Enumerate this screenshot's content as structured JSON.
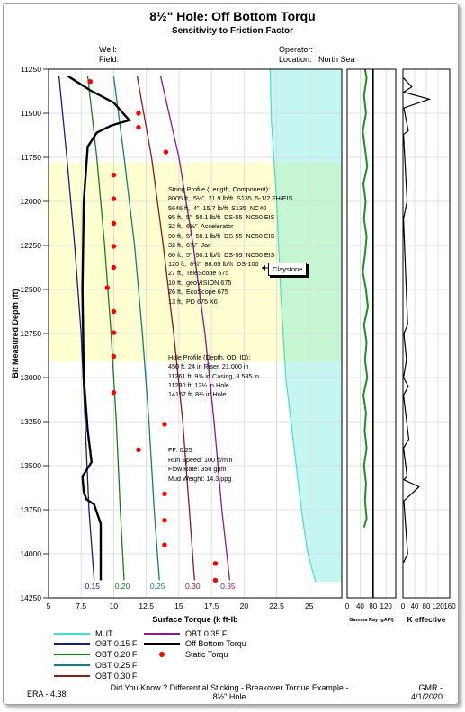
{
  "title": "8½\" Hole: Off Bottom Torqu",
  "subtitle": "Sensitivity to Friction Factor",
  "header": {
    "well_label": "Well:",
    "field_label": "Field:",
    "operator_label": "Operator:",
    "location_label": "Location:",
    "location_value": "North Sea"
  },
  "info_box": {
    "string_profile": [
      "String Profile (Length, Component):",
      "8005 ft,  5½\"  21.9 lb/ft  S135  5-1/2 FH/EIS",
      "5646 ft,  4\"  15.7 lb/ft  S135  NC40",
      "95 ft,  5\"  50.1 lb/ft  DS-55  NC50 EIS",
      "32 ft,  6½\"  Accelerator",
      "90 ft,  5\"  50.1 lb/ft  DS-55  NC50 EIS",
      "32 ft,  6½\"  Jar",
      "60 ft,  5\"  50.1 lb/ft  DS-55  NC50 EIS",
      "120 ft,  6¾\"  88.65 lb/ft  DS-100",
      "27 ft,  TeleScope 675",
      "10 ft,  geoVISION 675",
      "26 ft,  EcoScope 675",
      "13 ft,  PD 675 X6"
    ],
    "hole_profile": [
      "Hole Profile (Depth, OD, ID):",
      "450 ft, 24 in Riser, 21.000 in",
      "11261 ft, 9⅝ in Casing, 8.535 in",
      "11280 ft, 12¼ in Hole",
      "14157 ft, 8½ in Hole"
    ],
    "params": [
      "FF: 0.25",
      "Run Speed: 100 ft/min",
      "Flow Rate: 350 gpm",
      "Mud Weight: 14.3 ppg"
    ]
  },
  "claystone_label": "Claystone",
  "legend": {
    "items": [
      {
        "label": "MUT",
        "color": "#40e0d0",
        "kind": "line"
      },
      {
        "label": "OBT 0.15 F",
        "color": "#1a1a8c",
        "kind": "line"
      },
      {
        "label": "OBT 0.20 F",
        "color": "#1f7a1f",
        "kind": "line"
      },
      {
        "label": "OBT 0.25 F",
        "color": "#0f7f7f",
        "kind": "line"
      },
      {
        "label": "OBT 0.30 F",
        "color": "#8b1a1a",
        "kind": "line"
      },
      {
        "label": "OBT 0.35 F",
        "color": "#8b1a8b",
        "kind": "line"
      },
      {
        "label": "Off Bottom Torqu",
        "color": "#000000",
        "kind": "line"
      },
      {
        "label": "Static Torqu",
        "color": "#ff0000",
        "kind": "dot"
      }
    ]
  },
  "footer": {
    "left": "ERA - 4.38.",
    "center_line1": "Did You Know ? Differential Sticking - Breakover Torque Example -",
    "center_line2": "8½\" Hole",
    "right_line1": "GMR -",
    "right_line2": "4/1/2020"
  },
  "chart_data": [
    {
      "type": "line",
      "title": "8½\" Hole: Off Bottom Torqu",
      "xlabel": "Surface Torque (k ft-lb",
      "ylabel": "Bit Measured Depth (ft)",
      "xlim": [
        5,
        27.5
      ],
      "ylim": [
        14250,
        11250
      ],
      "y_inverted": true,
      "xticks": [
        "5",
        "7.5",
        "10",
        "12.5",
        "15",
        "17.5",
        "20",
        "22.5",
        "25"
      ],
      "yticks": [
        "11250",
        "11500",
        "11750",
        "12000",
        "12250",
        "12500",
        "12750",
        "13000",
        "13250",
        "13500",
        "13750",
        "14000",
        "14250"
      ],
      "grid": true,
      "shaded_band": {
        "depth_from": 11780,
        "depth_to": 12910,
        "color": "#ffffcc"
      },
      "series": [
        {
          "name": "MUT",
          "color": "#40e0d0",
          "x": [
            22,
            22.1,
            22.5,
            22.8,
            23.2,
            23.6,
            24.0,
            24.4,
            24.9,
            25.5
          ],
          "y": [
            11250,
            11550,
            12000,
            12500,
            13000,
            13250,
            13500,
            13750,
            14000,
            14160
          ]
        },
        {
          "name": "OBT 0.15 F",
          "color": "#1a1a8c",
          "series_label": "0.15",
          "x": [
            5.8,
            6.4,
            7.0,
            7.5,
            7.8,
            8.1,
            8.5
          ],
          "y": [
            11290,
            11750,
            12250,
            12750,
            13250,
            13750,
            14150
          ]
        },
        {
          "name": "OBT 0.20 F",
          "color": "#1f7a1f",
          "series_label": "0.20",
          "x": [
            8.0,
            8.7,
            9.3,
            9.8,
            10.2,
            10.5,
            10.8
          ],
          "y": [
            11290,
            11750,
            12250,
            12750,
            13250,
            13750,
            14150
          ]
        },
        {
          "name": "OBT 0.25 F",
          "color": "#0f7f7f",
          "series_label": "0.25",
          "x": [
            10.0,
            10.8,
            11.6,
            12.2,
            12.7,
            13.1,
            13.5
          ],
          "y": [
            11290,
            11750,
            12250,
            12750,
            13250,
            13750,
            14150
          ]
        },
        {
          "name": "OBT 0.30 F",
          "color": "#8b1a1a",
          "series_label": "0.30",
          "x": [
            11.8,
            12.9,
            13.8,
            14.6,
            15.3,
            15.8,
            16.2
          ],
          "y": [
            11290,
            11750,
            12250,
            12750,
            13250,
            13750,
            14150
          ]
        },
        {
          "name": "OBT 0.35 F",
          "color": "#8b1a8b",
          "series_label": "0.35",
          "x": [
            13.6,
            15.0,
            16.1,
            17.0,
            17.7,
            18.3,
            18.9
          ],
          "y": [
            11290,
            11750,
            12250,
            12750,
            13250,
            13750,
            14150
          ]
        },
        {
          "name": "Off Bottom Torqu",
          "color": "#000000",
          "x": [
            6.5,
            8.2,
            10.0,
            11.2,
            9.8,
            8.7,
            8.0,
            7.7,
            7.6,
            7.7,
            8.0,
            8.3,
            7.6,
            7.7,
            7.9,
            8.5,
            9.0,
            9.0
          ],
          "y": [
            11290,
            11370,
            11440,
            11540,
            11570,
            11610,
            11690,
            12000,
            12500,
            13000,
            13300,
            13480,
            13560,
            13650,
            13690,
            13720,
            13830,
            14150
          ]
        },
        {
          "name": "Static Torqu",
          "color": "#ff0000",
          "type": "scatter",
          "x": [
            8.2,
            11.9,
            11.9,
            14.0,
            10.0,
            10.0,
            10.0,
            10.0,
            10.0,
            9.5,
            10.0,
            10.0,
            10.0,
            10.0,
            13.9,
            11.9,
            13.9,
            13.9,
            13.9,
            17.8,
            17.8
          ],
          "y": [
            11320,
            11500,
            11580,
            11720,
            11850,
            11985,
            12125,
            12255,
            12375,
            12490,
            12625,
            12745,
            12880,
            13085,
            13265,
            13410,
            13660,
            13810,
            13950,
            14055,
            14150
          ]
        }
      ]
    },
    {
      "type": "line",
      "title": "",
      "xlabel": "Gamma Ray (gAPI)",
      "xlim": [
        0,
        150
      ],
      "ylim": [
        14250,
        11250
      ],
      "xticks": [
        "0",
        "40",
        "80",
        "120"
      ],
      "series": [
        {
          "name": "",
          "color": "#1f8f1f",
          "x": [
            55,
            60,
            52,
            58,
            48,
            55,
            62,
            50,
            57,
            52,
            60,
            55,
            48,
            58,
            64,
            52,
            60,
            55,
            62,
            50,
            58,
            54,
            60,
            52,
            58,
            55,
            60,
            52
          ],
          "y": [
            11250,
            11300,
            11400,
            11500,
            11600,
            11700,
            11800,
            11900,
            12000,
            12100,
            12200,
            12300,
            12400,
            12500,
            12600,
            12700,
            12800,
            12900,
            13000,
            13100,
            13200,
            13300,
            13400,
            13500,
            13600,
            13700,
            13800,
            13850
          ]
        },
        {
          "name": "",
          "color": "#000000",
          "x": [
            80,
            80
          ],
          "y": [
            11250,
            14250
          ]
        }
      ]
    },
    {
      "type": "line",
      "title": "",
      "xlabel": "K effective",
      "xlim": [
        0,
        160
      ],
      "ylim": [
        14250,
        11250
      ],
      "xticks": [
        "0",
        "40",
        "80",
        "120",
        "160"
      ],
      "series": [
        {
          "name": "",
          "color": "#000000",
          "x": [
            2,
            30,
            2,
            90,
            3,
            18,
            2,
            14,
            2,
            16,
            3,
            12,
            2,
            18,
            2,
            20,
            2,
            14,
            3,
            55,
            3,
            16,
            2
          ],
          "y": [
            11300,
            11350,
            11380,
            11420,
            11470,
            11600,
            11620,
            12000,
            12100,
            12700,
            12750,
            12900,
            13000,
            13050,
            13100,
            13350,
            13400,
            13560,
            13580,
            13620,
            13700,
            14000,
            14050
          ]
        }
      ]
    }
  ]
}
